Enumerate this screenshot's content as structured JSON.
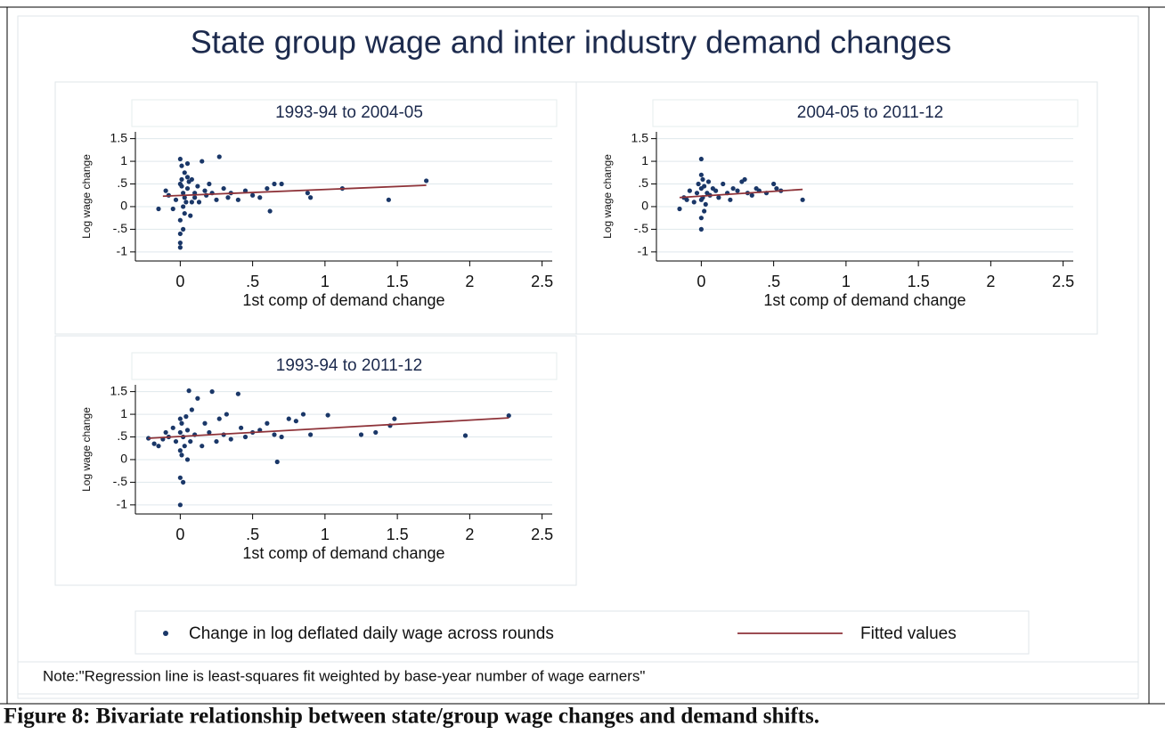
{
  "title": "State group wage and inter industry demand changes",
  "note": "Note:\"Regression line is least-squares fit weighted by base-year number of wage earners\"",
  "caption": "Figure 8:  Bivariate relationship between state/group wage changes and demand shifts.",
  "chart_data": [
    {
      "type": "scatter",
      "title": "1993-94 to 2004-05",
      "xlabel": "1st comp of demand change",
      "ylabel": "Log wage change",
      "xlim": [
        -0.31,
        2.57
      ],
      "ylim": [
        -1.2,
        1.65
      ],
      "grid": true,
      "xticks": [
        0,
        {
          "value": 0.5,
          "label": ".5"
        },
        1,
        {
          "value": 1.5,
          "label": "1.5"
        },
        2,
        {
          "value": 2.5,
          "label": "2.5"
        }
      ],
      "yticks": [
        {
          "value": -1,
          "label": "-1"
        },
        {
          "value": -0.5,
          "label": "-.5"
        },
        0,
        {
          "value": 0.5,
          "label": ".5"
        },
        1,
        {
          "value": 1.5,
          "label": "1.5"
        }
      ],
      "series": [
        {
          "name": "Change in log deflated daily wage across rounds",
          "mode": "scatter",
          "color": "#1a3768",
          "x": [
            -0.15,
            -0.1,
            -0.08,
            -0.05,
            -0.03,
            0,
            0,
            0,
            0,
            0,
            0.01,
            0.01,
            0.02,
            0.02,
            0.03,
            0.03,
            0.04,
            0.05,
            0.05,
            0.06,
            0.07,
            0.08,
            0.1,
            0.1,
            0.12,
            0.13,
            0.15,
            0.17,
            0.18,
            0.2,
            0.22,
            0.25,
            0.27,
            0.3,
            0.33,
            0.35,
            0.4,
            0.45,
            0.5,
            0.55,
            0.6,
            0.62,
            0.65,
            0.7,
            0.88,
            0.9,
            1.12,
            1.44,
            1.7,
            0,
            0.02,
            0.05,
            0.01,
            0.03,
            0.08
          ],
          "values": [
            -0.05,
            0.35,
            0.25,
            -0.05,
            0.15,
            -0.8,
            -0.9,
            0.5,
            1.05,
            -0.3,
            0.9,
            0.6,
            -0.5,
            0.3,
            0.75,
            0.2,
            0.1,
            0.95,
            0.4,
            0.55,
            -0.2,
            0.6,
            0.3,
            0.2,
            0.45,
            0.1,
            1.0,
            0.35,
            0.25,
            0.5,
            0.3,
            0.15,
            1.1,
            0.4,
            0.2,
            0.3,
            0.15,
            0.35,
            0.25,
            0.2,
            0.4,
            -0.1,
            0.5,
            0.5,
            0.3,
            0.2,
            0.4,
            0.15,
            0.57,
            -0.6,
            0.0,
            0.65,
            0.45,
            -0.15,
            0.1
          ]
        },
        {
          "name": "Fitted values",
          "mode": "line",
          "color": "#8e3339",
          "x": [
            -0.12,
            1.7
          ],
          "values": [
            0.23,
            0.47
          ]
        }
      ]
    },
    {
      "type": "scatter",
      "title": "2004-05 to 2011-12",
      "xlabel": "1st comp of demand change",
      "ylabel": "Log wage change",
      "xlim": [
        -0.31,
        2.57
      ],
      "ylim": [
        -1.2,
        1.65
      ],
      "grid": true,
      "xticks": [
        0,
        {
          "value": 0.5,
          "label": ".5"
        },
        1,
        {
          "value": 1.5,
          "label": "1.5"
        },
        2,
        {
          "value": 2.5,
          "label": "2.5"
        }
      ],
      "yticks": [
        {
          "value": -1,
          "label": "-1"
        },
        {
          "value": -0.5,
          "label": "-.5"
        },
        0,
        {
          "value": 0.5,
          "label": ".5"
        },
        1,
        {
          "value": 1.5,
          "label": "1.5"
        }
      ],
      "series": [
        {
          "name": "Change in log deflated daily wage across rounds",
          "mode": "scatter",
          "color": "#1a3768",
          "x": [
            -0.15,
            -0.12,
            -0.1,
            -0.08,
            -0.05,
            -0.03,
            -0.02,
            0,
            0,
            0,
            0,
            0,
            0.01,
            0.01,
            0.02,
            0.03,
            0.04,
            0.05,
            0.06,
            0.08,
            0.1,
            0.12,
            0.15,
            0.18,
            0.2,
            0.22,
            0.25,
            0.28,
            0.3,
            0.32,
            0.35,
            0.38,
            0.4,
            0.45,
            0.5,
            0.52,
            0.55,
            0.7,
            0,
            0.02
          ],
          "values": [
            -0.05,
            0.2,
            0.15,
            0.35,
            0.1,
            0.3,
            0.5,
            1.05,
            -0.5,
            0.7,
            -0.25,
            0.4,
            0.6,
            0.2,
            0.45,
            0.05,
            0.3,
            0.55,
            0.25,
            0.4,
            0.35,
            0.2,
            0.5,
            0.3,
            0.15,
            0.4,
            0.35,
            0.55,
            0.6,
            0.3,
            0.25,
            0.4,
            0.35,
            0.3,
            0.5,
            0.4,
            0.35,
            0.15,
            0.15,
            -0.1
          ]
        },
        {
          "name": "Fitted values",
          "mode": "line",
          "color": "#8e3339",
          "x": [
            -0.15,
            0.7
          ],
          "values": [
            0.2,
            0.38
          ]
        }
      ]
    },
    {
      "type": "scatter",
      "title": "1993-94 to 2011-12",
      "xlabel": "1st comp of demand change",
      "ylabel": "Log wage change",
      "xlim": [
        -0.31,
        2.57
      ],
      "ylim": [
        -1.2,
        1.65
      ],
      "grid": true,
      "xticks": [
        0,
        {
          "value": 0.5,
          "label": ".5"
        },
        1,
        {
          "value": 1.5,
          "label": "1.5"
        },
        2,
        {
          "value": 2.5,
          "label": "2.5"
        }
      ],
      "yticks": [
        {
          "value": -1,
          "label": "-1"
        },
        {
          "value": -0.5,
          "label": "-.5"
        },
        0,
        {
          "value": 0.5,
          "label": ".5"
        },
        1,
        {
          "value": 1.5,
          "label": "1.5"
        }
      ],
      "series": [
        {
          "name": "Change in log deflated daily wage across rounds",
          "mode": "scatter",
          "color": "#1a3768",
          "x": [
            -0.22,
            -0.18,
            -0.15,
            -0.12,
            -0.1,
            -0.08,
            -0.05,
            -0.03,
            0,
            0,
            0,
            0,
            0,
            0.01,
            0.02,
            0.02,
            0.03,
            0.04,
            0.05,
            0.06,
            0.07,
            0.08,
            0.1,
            0.12,
            0.15,
            0.17,
            0.2,
            0.22,
            0.25,
            0.27,
            0.3,
            0.32,
            0.35,
            0.4,
            0.42,
            0.45,
            0.5,
            0.55,
            0.6,
            0.65,
            0.67,
            0.7,
            0.75,
            0.8,
            0.85,
            0.9,
            1.02,
            1.25,
            1.35,
            1.45,
            1.48,
            1.97,
            2.27,
            0.01,
            0.05
          ],
          "values": [
            0.47,
            0.35,
            0.3,
            0.45,
            0.6,
            0.5,
            0.7,
            0.4,
            -1.0,
            0.9,
            -0.4,
            0.2,
            0.6,
            0.8,
            -0.5,
            0.5,
            0.3,
            0.95,
            0.65,
            1.52,
            0.4,
            1.1,
            0.55,
            1.35,
            0.3,
            0.8,
            0.6,
            1.5,
            0.4,
            0.9,
            0.55,
            1.0,
            0.45,
            1.45,
            0.7,
            0.5,
            0.6,
            0.65,
            0.8,
            0.55,
            -0.05,
            0.5,
            0.9,
            0.85,
            1.0,
            0.55,
            0.98,
            0.55,
            0.6,
            0.75,
            0.9,
            0.53,
            0.97,
            0.1,
            0.0
          ]
        },
        {
          "name": "Fitted values",
          "mode": "line",
          "color": "#8e3339",
          "x": [
            -0.22,
            2.27
          ],
          "values": [
            0.47,
            0.92
          ]
        }
      ]
    }
  ]
}
